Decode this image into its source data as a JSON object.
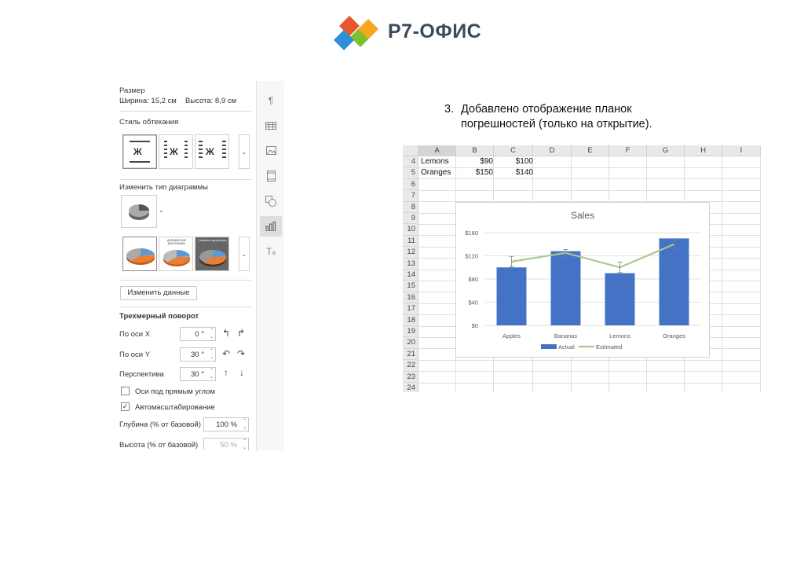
{
  "logo": {
    "text": "Р7-ОФИС"
  },
  "panel": {
    "size": {
      "title": "Размер",
      "width_label": "Ширина: 15,2 см",
      "height_label": "Высота: 8,9 см"
    },
    "wrap": {
      "title": "Стиль обтекания"
    },
    "chart_type": {
      "title": "Изменить тип диаграммы"
    },
    "presets": [
      "",
      "ДОБАВЛЕНИЕ ДИАГРАММЫ",
      "Название диаграммы"
    ],
    "edit_data_label": "Изменить данные",
    "rotation": {
      "title": "Трехмерный поворот",
      "x_label": "По оси X",
      "x_value": "0 °",
      "y_label": "По оси Y",
      "y_value": "30 °",
      "persp_label": "Перспектива",
      "persp_value": "30 °"
    },
    "right_angle_label": "Оси под прямым углом",
    "autoscale_label": "Автомасштабирование",
    "depth_label": "Глубина (% от базовой)",
    "depth_value": "100 %",
    "height_label": "Высота (% от базовой)",
    "height_value": "50 %"
  },
  "toolbar": [
    "paragraph-icon",
    "table-icon",
    "image-icon",
    "header-footer-icon",
    "shape-icon",
    "chart-icon",
    "text-art-icon"
  ],
  "step": {
    "number": "3.",
    "line1": "Добавлено отображение планок",
    "line2": "погрешностей (только на открытие)."
  },
  "sheet": {
    "columns": [
      "A",
      "B",
      "C",
      "D",
      "E",
      "F",
      "G",
      "H",
      "I"
    ],
    "rows": [
      "4",
      "5",
      "6",
      "7",
      "8",
      "9",
      "10",
      "11",
      "12",
      "13",
      "14",
      "15",
      "16",
      "17",
      "18",
      "19",
      "20",
      "21",
      "22",
      "23",
      "24"
    ],
    "cells": {
      "r4": [
        "Lemons",
        "$90",
        "$100"
      ],
      "r5": [
        "Oranges",
        "$150",
        "$140"
      ]
    }
  },
  "chart_data": {
    "type": "bar",
    "title": "Sales",
    "categories": [
      "Apples",
      "Bananas",
      "Lemons",
      "Oranges"
    ],
    "series": [
      {
        "name": "Actual",
        "type": "bar",
        "values": [
          100,
          128,
          90,
          150
        ],
        "color": "#4472C4",
        "error": [
          9,
          6,
          9,
          8
        ]
      },
      {
        "name": "Estimated",
        "type": "line",
        "values": [
          110,
          125,
          100,
          140
        ],
        "color": "#A9C98D"
      }
    ],
    "yticks": [
      "$0",
      "$40",
      "$80",
      "$120",
      "$160"
    ],
    "ylim": [
      0,
      160
    ],
    "legend": "bottom",
    "grid": true
  }
}
